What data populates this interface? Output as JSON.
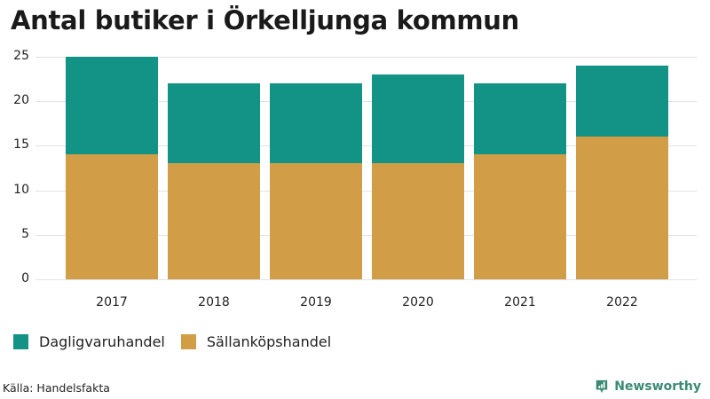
{
  "title": "Antal butiker i Örkelljunga kommun",
  "colors": {
    "Dagligvaruhandel": "#129385",
    "Sällanköpshandel": "#d19d47",
    "grid": "#e2e2e6"
  },
  "legend": [
    {
      "label": "Dagligvaruhandel",
      "color": "#129385"
    },
    {
      "label": "Sällanköpshandel",
      "color": "#d19d47"
    }
  ],
  "source": "Källa: Handelsfakta",
  "brand": "Newsworthy",
  "chart_data": {
    "type": "bar",
    "stacked": true,
    "title": "Antal butiker i Örkelljunga kommun",
    "xlabel": "",
    "ylabel": "",
    "categories": [
      "2017",
      "2018",
      "2019",
      "2020",
      "2021",
      "2022"
    ],
    "series": [
      {
        "name": "Sällanköpshandel",
        "values": [
          14,
          13,
          13,
          13,
          14,
          16
        ],
        "color": "#d19d47"
      },
      {
        "name": "Dagligvaruhandel",
        "values": [
          11,
          9,
          9,
          10,
          8,
          8
        ],
        "color": "#129385"
      }
    ],
    "totals": [
      25,
      22,
      22,
      23,
      22,
      24
    ],
    "yticks": [
      0,
      5,
      10,
      15,
      20,
      25
    ],
    "ylim": [
      0,
      25
    ],
    "grid": true,
    "legend_position": "bottom-left",
    "source": "Källa: Handelsfakta"
  }
}
